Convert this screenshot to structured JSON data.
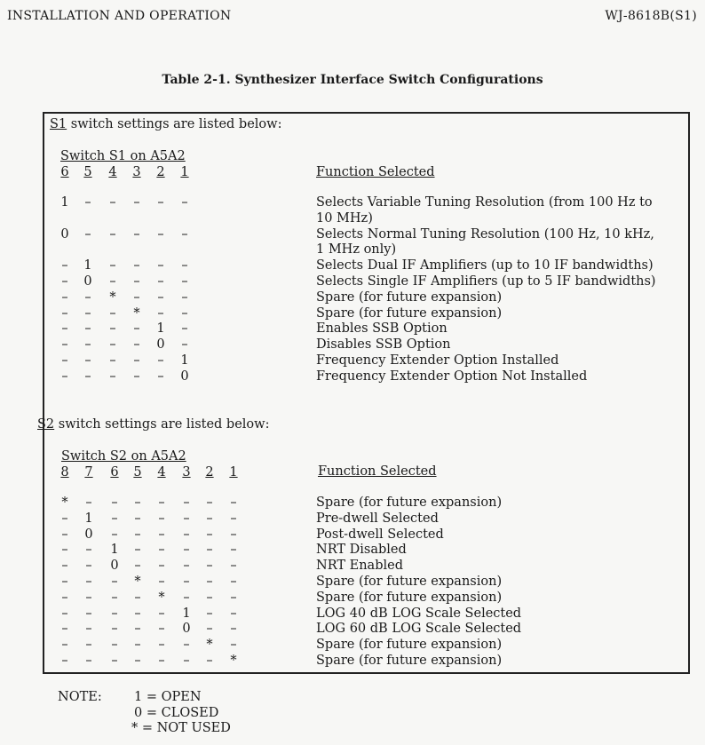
{
  "header": {
    "left": "INSTALLATION AND OPERATION",
    "right": "WJ-8618B(S1)"
  },
  "title": "Table 2-1.  Synthesizer Interface Switch Configurations",
  "s1": {
    "intro_switch": "S1",
    "intro_text": " switch settings are listed below:",
    "switch_label": "Switch S1 on A5A2",
    "columns": [
      "6",
      "5",
      "4",
      "3",
      "2",
      "1"
    ],
    "function_header": "Function Selected",
    "rows": [
      {
        "cells": [
          "1",
          "-",
          "-",
          "-",
          "-",
          "-"
        ],
        "function": [
          "Selects Variable Tuning Resolution (from 100 Hz to",
          "10 MHz)"
        ]
      },
      {
        "cells": [
          "0",
          "-",
          "-",
          "-",
          "-",
          "-"
        ],
        "function": [
          "Selects Normal Tuning Resolution (100 Hz, 10 kHz,",
          "1 MHz only)"
        ]
      },
      {
        "cells": [
          "-",
          "1",
          "-",
          "-",
          "-",
          "-"
        ],
        "function": [
          "Selects Dual IF Amplifiers (up to 10 IF bandwidths)"
        ]
      },
      {
        "cells": [
          "-",
          "0",
          "-",
          "-",
          "-",
          "-"
        ],
        "function": [
          "Selects Single IF Amplifiers (up to 5 IF bandwidths)"
        ]
      },
      {
        "cells": [
          "-",
          "-",
          "*",
          "-",
          "-",
          "-"
        ],
        "function": [
          "Spare (for future expansion)"
        ]
      },
      {
        "cells": [
          "-",
          "-",
          "-",
          "*",
          "-",
          "-"
        ],
        "function": [
          "Spare (for future expansion)"
        ]
      },
      {
        "cells": [
          "-",
          "-",
          "-",
          "-",
          "1",
          "-"
        ],
        "function": [
          "Enables SSB Option"
        ]
      },
      {
        "cells": [
          "-",
          "-",
          "-",
          "-",
          "0",
          "-"
        ],
        "function": [
          "Disables SSB Option"
        ]
      },
      {
        "cells": [
          "-",
          "-",
          "-",
          "-",
          "-",
          "1"
        ],
        "function": [
          "Frequency Extender Option Installed"
        ]
      },
      {
        "cells": [
          "-",
          "-",
          "-",
          "-",
          "-",
          "0"
        ],
        "function": [
          "Frequency Extender Option Not Installed"
        ]
      }
    ]
  },
  "s2": {
    "intro_switch": "S2",
    "intro_text": " switch settings are listed below:",
    "switch_label": "Switch S2 on A5A2",
    "columns": [
      "8",
      "7",
      "6",
      "5",
      "4",
      "3",
      "2",
      "1"
    ],
    "function_header": "Function Selected",
    "rows": [
      {
        "cells": [
          "*",
          "-",
          "-",
          "-",
          "-",
          "-",
          "-",
          "-"
        ],
        "function": [
          "Spare (for future expansion)"
        ]
      },
      {
        "cells": [
          "-",
          "1",
          "-",
          "-",
          "-",
          "-",
          "-",
          "-"
        ],
        "function": [
          "Pre-dwell Selected"
        ]
      },
      {
        "cells": [
          "-",
          "0",
          "-",
          "-",
          "-",
          "-",
          "-",
          "-"
        ],
        "function": [
          "Post-dwell Selected"
        ]
      },
      {
        "cells": [
          "-",
          "-",
          "1",
          "-",
          "-",
          "-",
          "-",
          "-"
        ],
        "function": [
          "NRT Disabled"
        ]
      },
      {
        "cells": [
          "-",
          "-",
          "0",
          "-",
          "-",
          "-",
          "-",
          "-"
        ],
        "function": [
          "NRT Enabled"
        ]
      },
      {
        "cells": [
          "-",
          "-",
          "-",
          "*",
          "-",
          "-",
          "-",
          "-"
        ],
        "function": [
          "Spare (for future expansion)"
        ]
      },
      {
        "cells": [
          "-",
          "-",
          "-",
          "-",
          "*",
          "-",
          "-",
          "-"
        ],
        "function": [
          "Spare (for future expansion)"
        ]
      },
      {
        "cells": [
          "-",
          "-",
          "-",
          "-",
          "-",
          "1",
          "-",
          "-"
        ],
        "function": [
          "LOG 40 dB LOG Scale Selected"
        ]
      },
      {
        "cells": [
          "-",
          "-",
          "-",
          "-",
          "-",
          "0",
          "-",
          "-"
        ],
        "function": [
          "LOG 60 dB LOG Scale Selected"
        ]
      },
      {
        "cells": [
          "-",
          "-",
          "-",
          "-",
          "-",
          "-",
          "*",
          "-"
        ],
        "function": [
          "Spare (for future expansion)"
        ]
      },
      {
        "cells": [
          "-",
          "-",
          "-",
          "-",
          "-",
          "-",
          "-",
          "*"
        ],
        "function": [
          "Spare (for future expansion)"
        ]
      }
    ]
  },
  "note": {
    "label": "NOTE:",
    "items": [
      "1 = OPEN",
      "0 = CLOSED",
      "* = NOT USED"
    ]
  }
}
